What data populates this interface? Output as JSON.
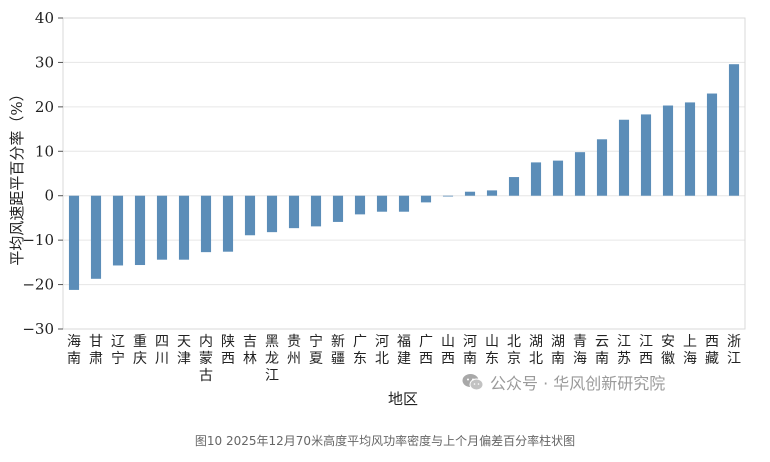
{
  "chart_data": {
    "type": "bar",
    "categories": [
      [
        "海",
        "南"
      ],
      [
        "甘",
        "肃"
      ],
      [
        "辽",
        "宁"
      ],
      [
        "重",
        "庆"
      ],
      [
        "四",
        "川"
      ],
      [
        "天",
        "津"
      ],
      [
        "内",
        "蒙",
        "古"
      ],
      [
        "陕",
        "西"
      ],
      [
        "吉",
        "林"
      ],
      [
        "黑",
        "龙",
        "江"
      ],
      [
        "贵",
        "州"
      ],
      [
        "宁",
        "夏"
      ],
      [
        "新",
        "疆"
      ],
      [
        "广",
        "东"
      ],
      [
        "河",
        "北"
      ],
      [
        "福",
        "建"
      ],
      [
        "广",
        "西"
      ],
      [
        "山",
        "西"
      ],
      [
        "河",
        "南"
      ],
      [
        "山",
        "东"
      ],
      [
        "北",
        "京"
      ],
      [
        "湖",
        "北"
      ],
      [
        "湖",
        "南"
      ],
      [
        "青",
        "海"
      ],
      [
        "云",
        "南"
      ],
      [
        "江",
        "苏"
      ],
      [
        "江",
        "西"
      ],
      [
        "安",
        "徽"
      ],
      [
        "上",
        "海"
      ],
      [
        "西",
        "藏"
      ],
      [
        "浙",
        "江"
      ]
    ],
    "values": [
      -21.2,
      -18.7,
      -15.7,
      -15.6,
      -14.4,
      -14.4,
      -12.7,
      -12.6,
      -8.9,
      -8.2,
      -7.3,
      -6.9,
      -5.9,
      -4.2,
      -3.6,
      -3.6,
      -1.5,
      -0.1,
      0.9,
      1.2,
      4.2,
      7.5,
      7.9,
      9.8,
      12.7,
      17.1,
      18.3,
      20.3,
      21.0,
      23.0,
      29.6
    ],
    "ylabel": "平均风速距平百分率（%）",
    "xlabel": "地区",
    "ylim": [
      -30,
      40
    ],
    "yticks": [
      -30,
      -20,
      -10,
      0,
      10,
      20,
      30,
      40
    ],
    "grid": true,
    "bar_color": "#5b8db8",
    "grid_color": "#e6e6e6",
    "frame_color": "#d9d9d9"
  },
  "watermark": {
    "icon": "wechat-icon",
    "text": "公众号 · 华风创新研究院"
  },
  "caption": "图10   2025年12月70米高度平均风功率密度与上个月偏差百分率柱状图"
}
